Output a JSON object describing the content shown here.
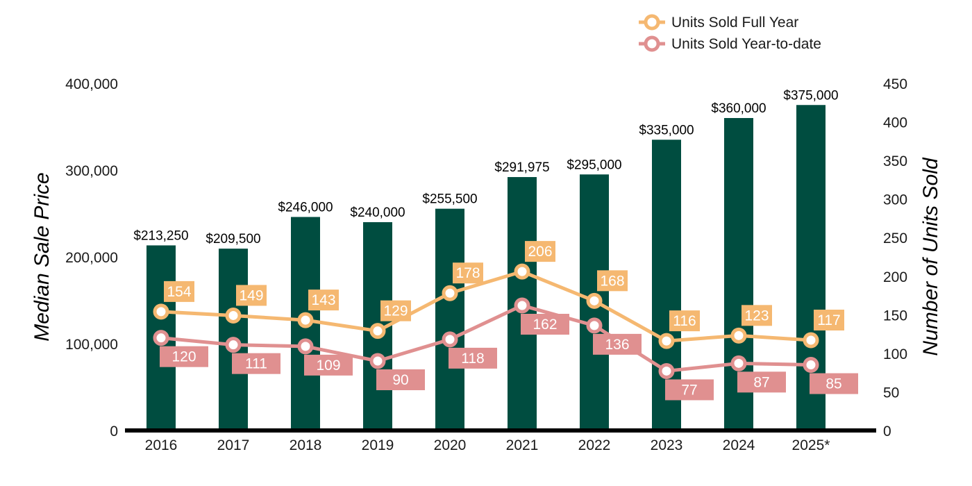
{
  "chart_data": {
    "type": "bar",
    "categories": [
      "2016",
      "2017",
      "2018",
      "2019",
      "2020",
      "2021",
      "2022",
      "2023",
      "2024",
      "2025*"
    ],
    "ylabel": "Median Sale Price",
    "y2label": "Number of Units Sold",
    "ylim": [
      0,
      400000
    ],
    "y2lim": [
      0,
      450
    ],
    "y_ticks": [
      "0",
      "100,000",
      "200,000",
      "300,000",
      "400,000"
    ],
    "y2_ticks": [
      "0",
      "50",
      "100",
      "150",
      "200",
      "250",
      "300",
      "350",
      "400",
      "450"
    ],
    "legend_position": "top-right",
    "grid": false,
    "bars": {
      "values": [
        213250,
        209500,
        246000,
        240000,
        255500,
        291975,
        295000,
        335000,
        360000,
        375000
      ],
      "labels": [
        "$213,250",
        "$209,500",
        "$246,000",
        "$240,000",
        "$255,500",
        "$291,975",
        "$295,000",
        "$335,000",
        "$360,000",
        "$375,000"
      ],
      "color": "#004d40"
    },
    "series": [
      {
        "type": "line",
        "axis": "right",
        "name": "Units Sold Full Year",
        "color": "#f5b871",
        "values": [
          154,
          149,
          143,
          129,
          178,
          206,
          168,
          116,
          123,
          117
        ],
        "labels": [
          "154",
          "149",
          "143",
          "129",
          "178",
          "206",
          "168",
          "116",
          "123",
          "117"
        ]
      },
      {
        "type": "line",
        "axis": "right",
        "name": "Units Sold Year-to-date",
        "color": "#e09090",
        "values": [
          120,
          111,
          109,
          90,
          118,
          162,
          136,
          77,
          87,
          85
        ],
        "labels": [
          "120",
          "111",
          "109",
          "90",
          "118",
          "162",
          "136",
          "77",
          "87",
          "85"
        ]
      }
    ]
  }
}
